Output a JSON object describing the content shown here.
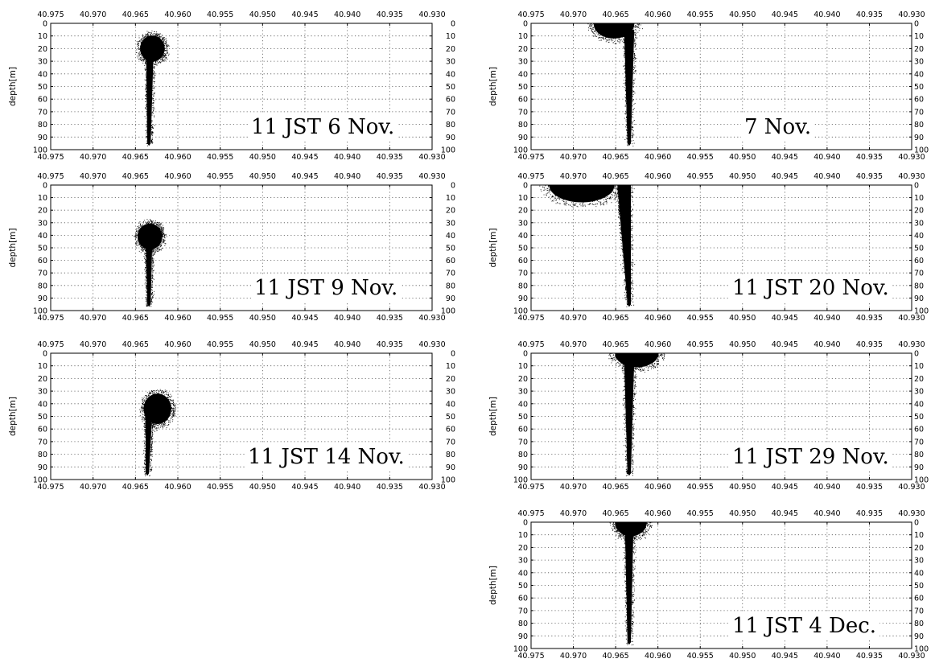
{
  "chart_data": [
    {
      "type": "scatter",
      "panel": "left-1",
      "label": "11 JST 6 Nov.",
      "ylabel": "depth[m]",
      "x_ticks": [
        "40.975",
        "40.970",
        "40.965",
        "40.960",
        "40.955",
        "40.950",
        "40.945",
        "40.940",
        "40.935",
        "40.930"
      ],
      "y_ticks": [
        "0",
        "10",
        "20",
        "30",
        "40",
        "50",
        "60",
        "70",
        "80",
        "90",
        "100"
      ],
      "xlim": [
        40.975,
        40.93
      ],
      "ylim": [
        0,
        100
      ],
      "y_inverted": true,
      "grid": "dotted",
      "head": {
        "x": 40.963,
        "depth": 20,
        "rx": 0.0017,
        "rdepth": 12
      },
      "stem": {
        "x_top": 40.9633,
        "x_bottom": 40.9634,
        "depth_top": 20,
        "depth_bottom": 97,
        "half_width_top": 0.00045,
        "half_width_bottom": 0.0002
      }
    },
    {
      "type": "scatter",
      "panel": "left-2",
      "label": "11 JST 9 Nov.",
      "ylabel": "depth[m]",
      "x_ticks": [
        "40.975",
        "40.970",
        "40.965",
        "40.960",
        "40.955",
        "40.950",
        "40.945",
        "40.940",
        "40.935",
        "40.930"
      ],
      "y_ticks": [
        "0",
        "10",
        "20",
        "30",
        "40",
        "50",
        "60",
        "70",
        "80",
        "90",
        "100"
      ],
      "xlim": [
        40.975,
        40.93
      ],
      "ylim": [
        0,
        100
      ],
      "y_inverted": true,
      "grid": "dotted",
      "head": {
        "x": 40.9633,
        "depth": 41,
        "rx": 0.0017,
        "rdepth": 12
      },
      "stem": {
        "x_top": 40.9634,
        "x_bottom": 40.9634,
        "depth_top": 41,
        "depth_bottom": 97,
        "half_width_top": 0.0004,
        "half_width_bottom": 0.0002
      }
    },
    {
      "type": "scatter",
      "panel": "left-3",
      "label": "11 JST 14 Nov.",
      "ylabel": "depth[m]",
      "x_ticks": [
        "40.975",
        "40.970",
        "40.965",
        "40.960",
        "40.955",
        "40.950",
        "40.945",
        "40.940",
        "40.935",
        "40.930"
      ],
      "y_ticks": [
        "0",
        "10",
        "20",
        "30",
        "40",
        "50",
        "60",
        "70",
        "80",
        "90",
        "100"
      ],
      "xlim": [
        40.975,
        40.93
      ],
      "ylim": [
        0,
        100
      ],
      "y_inverted": true,
      "grid": "dotted",
      "head": {
        "x": 40.9624,
        "depth": 44,
        "rx": 0.0019,
        "rdepth": 14
      },
      "stem": {
        "x_top": 40.9634,
        "x_bottom": 40.9636,
        "depth_top": 46,
        "depth_bottom": 97,
        "half_width_top": 0.0004,
        "half_width_bottom": 0.0002
      }
    },
    {
      "type": "scatter",
      "panel": "right-1",
      "label": "7 Nov.",
      "ylabel": "depth[m]",
      "x_ticks": [
        "40.975",
        "40.970",
        "40.965",
        "40.960",
        "40.955",
        "40.950",
        "40.945",
        "40.940",
        "40.935",
        "40.930"
      ],
      "y_ticks": [
        "0",
        "10",
        "20",
        "30",
        "40",
        "50",
        "60",
        "70",
        "80",
        "90",
        "100"
      ],
      "xlim": [
        40.975,
        40.93
      ],
      "ylim": [
        0,
        100
      ],
      "y_inverted": true,
      "grid": "dotted",
      "head": {
        "x": 40.9652,
        "depth": 0,
        "rx": 0.0028,
        "rdepth": 14
      },
      "stem": {
        "x_top": 40.9634,
        "x_bottom": 40.9634,
        "depth_top": 5,
        "depth_bottom": 97,
        "half_width_top": 0.0006,
        "half_width_bottom": 0.0002
      }
    },
    {
      "type": "scatter",
      "panel": "right-2",
      "label": "11 JST 20 Nov.",
      "ylabel": "depth[m]",
      "x_ticks": [
        "40.975",
        "40.970",
        "40.965",
        "40.960",
        "40.955",
        "40.950",
        "40.945",
        "40.940",
        "40.935",
        "40.930"
      ],
      "y_ticks": [
        "0",
        "10",
        "20",
        "30",
        "40",
        "50",
        "60",
        "70",
        "80",
        "90",
        "100"
      ],
      "xlim": [
        40.975,
        40.93
      ],
      "ylim": [
        0,
        100
      ],
      "y_inverted": true,
      "grid": "dotted",
      "head": {
        "x": 40.969,
        "depth": 0,
        "rx": 0.0045,
        "rdepth": 16
      },
      "stem": {
        "x_top": 40.964,
        "x_bottom": 40.9634,
        "depth_top": 0,
        "depth_bottom": 97,
        "half_width_top": 0.0008,
        "half_width_bottom": 0.0002
      }
    },
    {
      "type": "scatter",
      "panel": "right-3",
      "label": "11 JST 29 Nov.",
      "ylabel": "depth[m]",
      "x_ticks": [
        "40.975",
        "40.970",
        "40.965",
        "40.960",
        "40.955",
        "40.950",
        "40.945",
        "40.940",
        "40.935",
        "40.930"
      ],
      "y_ticks": [
        "0",
        "10",
        "20",
        "30",
        "40",
        "50",
        "60",
        "70",
        "80",
        "90",
        "100"
      ],
      "xlim": [
        40.975,
        40.93
      ],
      "ylim": [
        0,
        100
      ],
      "y_inverted": true,
      "grid": "dotted",
      "head": {
        "x": 40.9625,
        "depth": 0,
        "rx": 0.003,
        "rdepth": 13
      },
      "stem": {
        "x_top": 40.9634,
        "x_bottom": 40.9634,
        "depth_top": 5,
        "depth_bottom": 97,
        "half_width_top": 0.0006,
        "half_width_bottom": 0.0002
      }
    },
    {
      "type": "scatter",
      "panel": "right-4",
      "label": "11 JST 4 Dec.",
      "ylabel": "depth[m]",
      "x_ticks": [
        "40.975",
        "40.970",
        "40.965",
        "40.960",
        "40.955",
        "40.950",
        "40.945",
        "40.940",
        "40.935",
        "40.930"
      ],
      "y_ticks": [
        "0",
        "10",
        "20",
        "30",
        "40",
        "50",
        "60",
        "70",
        "80",
        "90",
        "100"
      ],
      "xlim": [
        40.975,
        40.93
      ],
      "ylim": [
        0,
        100
      ],
      "y_inverted": true,
      "grid": "dotted",
      "head": {
        "x": 40.9632,
        "depth": 0,
        "rx": 0.0022,
        "rdepth": 13
      },
      "stem": {
        "x_top": 40.9634,
        "x_bottom": 40.9634,
        "depth_top": 5,
        "depth_bottom": 97,
        "half_width_top": 0.0005,
        "half_width_bottom": 0.0002
      }
    }
  ]
}
